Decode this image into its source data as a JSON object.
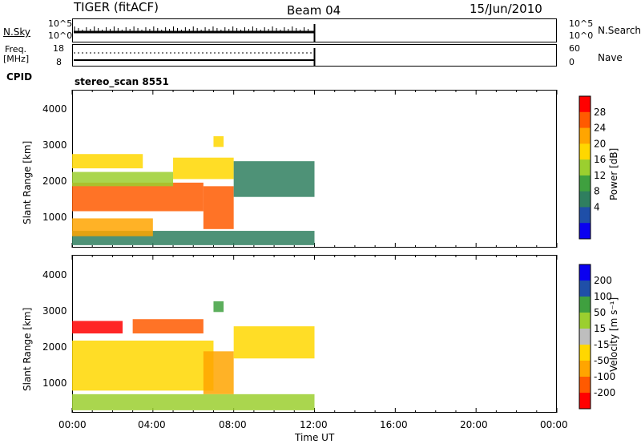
{
  "header": {
    "radar": "TIGER (fitACF)",
    "beam": "Beam 04",
    "date": "15/Jun/2010"
  },
  "noise_panel": {
    "left_label": "N.Sky",
    "left_ticks": [
      "10^5",
      "10^0"
    ],
    "right_ticks": [
      "10^5",
      "10^0"
    ],
    "right_label": "N.Search"
  },
  "freq_panel": {
    "left_label_1": "Freq.",
    "left_label_2": "[MHz]",
    "left_ticks": [
      "18",
      "8"
    ],
    "right_ticks": [
      "60",
      "0"
    ],
    "right_label": "Nave"
  },
  "cpid_panel": {
    "label": "CPID",
    "value": "stereo_scan 8551"
  },
  "colors": {
    "power_scale": [
      "#0a00f0",
      "#1f4fa8",
      "#2f7f5f",
      "#3fa03f",
      "#9bcf2f",
      "#ffd700",
      "#ffa500",
      "#ff5a00",
      "#ff0000"
    ],
    "velocity_scale": [
      "#ff0000",
      "#ff5a00",
      "#ffa500",
      "#ffd700",
      "#bebebe",
      "#9bcf2f",
      "#3fa03f",
      "#1f4fa8",
      "#0a00f0"
    ]
  },
  "chart_data": [
    {
      "type": "heatmap",
      "name": "power",
      "ylabel": "Slant Range [km]",
      "yticks": [
        "4000",
        "3000",
        "2000",
        "1000"
      ],
      "ylim": [
        180,
        4600
      ],
      "xlim": [
        0,
        24
      ],
      "colorbar_label": "Power [dB]",
      "colorbar_ticks": [
        "28",
        "24",
        "20",
        "16",
        "12",
        "8",
        "4"
      ],
      "clim": [
        0,
        32
      ],
      "data_extent_hours": [
        0,
        12
      ],
      "bands": [
        {
          "x0": 0.0,
          "x1": 12.0,
          "y0": 250,
          "y1": 650,
          "v": 6
        },
        {
          "x0": 0.0,
          "x1": 4.0,
          "y0": 500,
          "y1": 1000,
          "v": 22
        },
        {
          "x0": 0.0,
          "x1": 6.5,
          "y0": 1200,
          "y1": 2000,
          "v": 28
        },
        {
          "x0": 6.5,
          "x1": 8.0,
          "y0": 700,
          "y1": 1900,
          "v": 26
        },
        {
          "x0": 0.0,
          "x1": 5.0,
          "y0": 1900,
          "y1": 2300,
          "v": 16
        },
        {
          "x0": 0.0,
          "x1": 3.5,
          "y0": 2400,
          "y1": 2800,
          "v": 20
        },
        {
          "x0": 5.0,
          "x1": 8.0,
          "y0": 2100,
          "y1": 2700,
          "v": 18
        },
        {
          "x0": 8.0,
          "x1": 12.0,
          "y0": 1600,
          "y1": 2600,
          "v": 6
        },
        {
          "x0": 7.0,
          "x1": 7.5,
          "y0": 3000,
          "y1": 3300,
          "v": 18
        }
      ]
    },
    {
      "type": "heatmap",
      "name": "velocity",
      "ylabel": "Slant Range [km]",
      "yticks": [
        "4000",
        "3000",
        "2000",
        "1000"
      ],
      "ylim": [
        180,
        4600
      ],
      "xlim": [
        0,
        24
      ],
      "colorbar_label": "Velocity [m s⁻¹]",
      "colorbar_ticks": [
        "200",
        "100",
        "50",
        "15",
        "-15",
        "-50",
        "-100",
        "-200"
      ],
      "data_extent_hours": [
        0,
        12
      ],
      "bands": [
        {
          "x0": 0.0,
          "x1": 12.0,
          "y0": 250,
          "y1": 700,
          "v": "15"
        },
        {
          "x0": 0.0,
          "x1": 7.0,
          "y0": 800,
          "y1": 2200,
          "v": "-15"
        },
        {
          "x0": 6.5,
          "x1": 8.0,
          "y0": 700,
          "y1": 1900,
          "v": "-50"
        },
        {
          "x0": 0.0,
          "x1": 2.5,
          "y0": 2400,
          "y1": 2750,
          "v": "-200"
        },
        {
          "x0": 3.0,
          "x1": 6.5,
          "y0": 2400,
          "y1": 2800,
          "v": "-100"
        },
        {
          "x0": 8.0,
          "x1": 12.0,
          "y0": 1700,
          "y1": 2600,
          "v": "-15"
        },
        {
          "x0": 7.0,
          "x1": 7.5,
          "y0": 3000,
          "y1": 3300,
          "v": "50"
        }
      ]
    }
  ],
  "xaxis": {
    "ticks": [
      "00:00",
      "04:00",
      "08:00",
      "12:00",
      "16:00",
      "20:00",
      "00:00"
    ],
    "label": "Time UT"
  }
}
